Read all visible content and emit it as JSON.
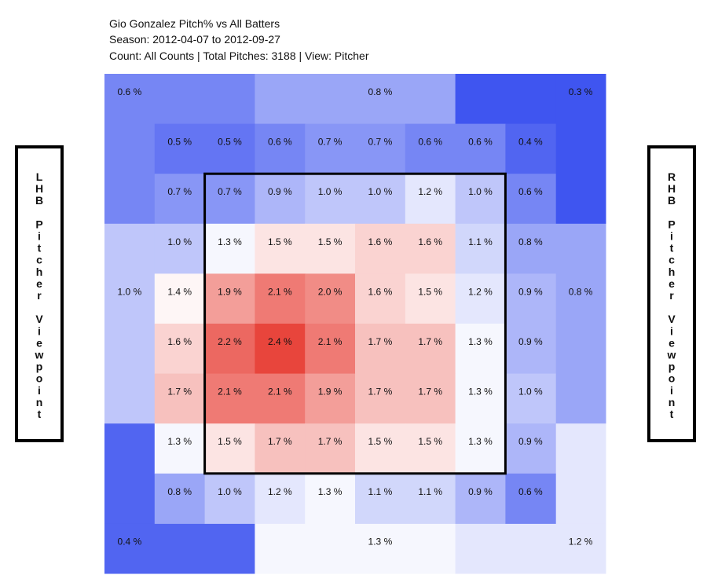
{
  "chart_data": {
    "type": "heatmap",
    "title": "Gio Gonzalez Pitch% vs All Batters",
    "subtitle": [
      "Season: 2012-04-07 to 2012-09-27",
      "Count: All Counts | Total Pitches: 3188 | View: Pitcher"
    ],
    "left_label": "LHB Pitcher Viewpoint",
    "right_label": "RHB Pitcher Viewpoint",
    "colors": {
      "low": "#3f55f0",
      "mid": "#ffffff",
      "high": "#e8453c"
    },
    "values": [
      [
        0.5,
        0.5,
        0.6,
        0.7,
        0.7,
        0.6,
        0.6,
        0.4
      ],
      [
        0.7,
        0.7,
        0.9,
        1.0,
        1.0,
        1.2,
        1.0,
        0.6
      ],
      [
        1.0,
        1.3,
        1.5,
        1.5,
        1.6,
        1.6,
        1.1,
        0.8
      ],
      [
        1.4,
        1.9,
        2.1,
        2.0,
        1.6,
        1.5,
        1.2,
        0.9
      ],
      [
        1.6,
        2.2,
        2.4,
        2.1,
        1.7,
        1.7,
        1.3,
        0.9
      ],
      [
        1.7,
        2.1,
        2.1,
        1.9,
        1.7,
        1.7,
        1.3,
        1.0
      ],
      [
        1.3,
        1.5,
        1.7,
        1.7,
        1.5,
        1.5,
        1.3,
        0.9
      ],
      [
        0.8,
        1.0,
        1.2,
        1.3,
        1.1,
        1.1,
        0.9,
        0.6
      ]
    ],
    "value_labels": [
      [
        "0.5 %",
        "0.5 %",
        "0.6 %",
        "0.7 %",
        "0.7 %",
        "0.6 %",
        "0.6 %",
        "0.4 %"
      ],
      [
        "0.7 %",
        "0.7 %",
        "0.9 %",
        "1.0 %",
        "1.0 %",
        "1.2 %",
        "1.0 %",
        "0.6 %"
      ],
      [
        "1.0 %",
        "1.3 %",
        "1.5 %",
        "1.5 %",
        "1.6 %",
        "1.6 %",
        "1.1 %",
        "0.8 %"
      ],
      [
        "1.4 %",
        "1.9 %",
        "2.1 %",
        "2.0 %",
        "1.6 %",
        "1.5 %",
        "1.2 %",
        "0.9 %"
      ],
      [
        "1.6 %",
        "2.2 %",
        "2.4 %",
        "2.1 %",
        "1.7 %",
        "1.7 %",
        "1.3 %",
        "0.9 %"
      ],
      [
        "1.7 %",
        "2.1 %",
        "2.1 %",
        "1.9 %",
        "1.7 %",
        "1.7 %",
        "1.3 %",
        "1.0 %"
      ],
      [
        "1.3 %",
        "1.5 %",
        "1.7 %",
        "1.7 %",
        "1.5 %",
        "1.5 %",
        "1.3 %",
        "0.9 %"
      ],
      [
        "0.8 %",
        "1.0 %",
        "1.2 %",
        "1.3 %",
        "1.1 %",
        "1.1 %",
        "0.9 %",
        "0.6 %"
      ]
    ],
    "zones": [
      {
        "position": "top-left",
        "value": 0.6,
        "value_label": "0.6 %"
      },
      {
        "position": "top",
        "value": 0.8,
        "value_label": "0.8 %"
      },
      {
        "position": "top-right",
        "value": 0.3,
        "value_label": "0.3 %"
      },
      {
        "position": "left",
        "value": 1.0,
        "value_label": "1.0 %"
      },
      {
        "position": "right",
        "value": 0.8,
        "value_label": "0.8 %"
      },
      {
        "position": "bottom-left",
        "value": 0.4,
        "value_label": "0.4 %"
      },
      {
        "position": "bottom",
        "value": 1.3,
        "value_label": "1.3 %"
      },
      {
        "position": "bottom-right",
        "value": 1.2,
        "value_label": "1.2 %"
      }
    ]
  }
}
